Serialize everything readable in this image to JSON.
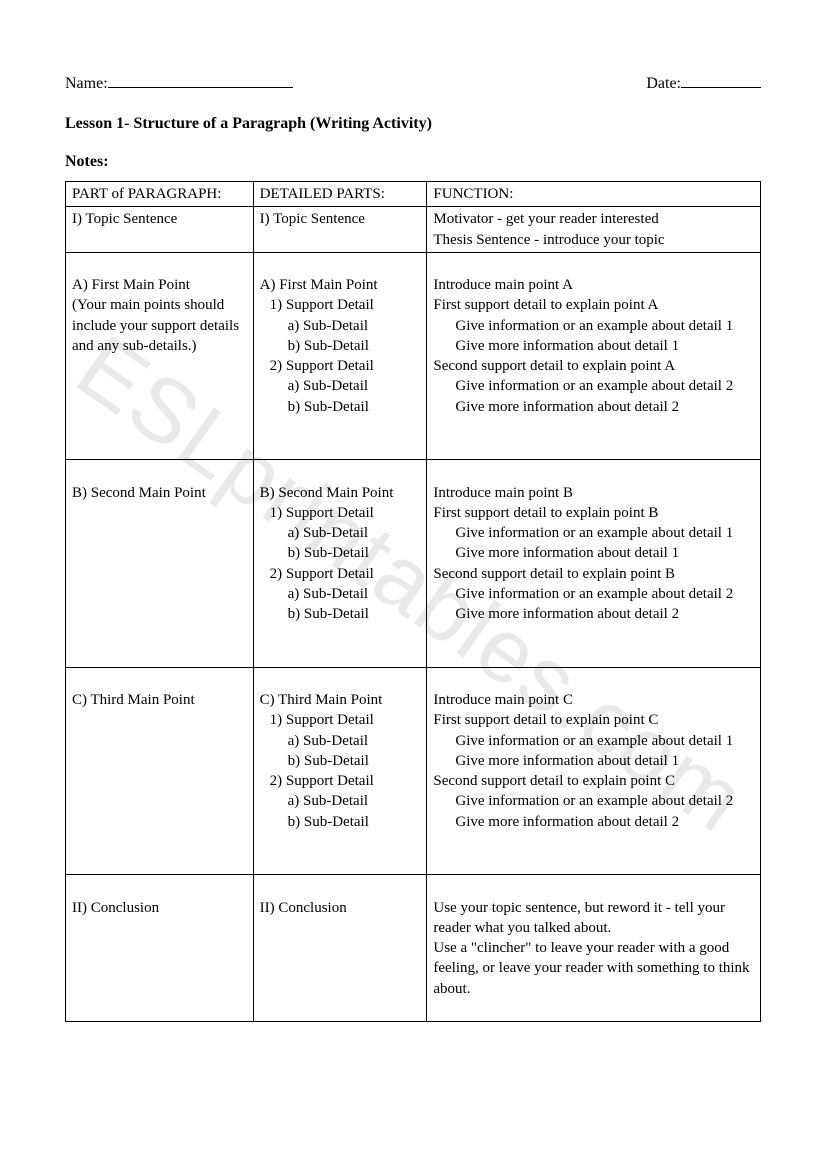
{
  "header": {
    "name_label": "Name:",
    "date_label": "Date:"
  },
  "title": "Lesson 1- Structure of a Paragraph  (Writing Activity)",
  "notes_label": "Notes:",
  "watermark": "ESLprintables.com",
  "table": {
    "headers": {
      "col1": "PART of PARAGRAPH:",
      "col2": "DETAILED PARTS:",
      "col3": "FUNCTION:"
    },
    "row_topic": {
      "c1": "I) Topic Sentence",
      "c2": "I) Topic Sentence",
      "c3a": "Motivator - get your reader interested",
      "c3b": "Thesis Sentence - introduce your topic"
    },
    "row_a": {
      "c1a": "A) First Main Point",
      "c1b": "(Your main points should include your support details and any sub-details.)",
      "c2_main": "A) First Main Point",
      "c2_1": "1) Support Detail",
      "c2_1a": "a) Sub-Detail",
      "c2_1b": "b) Sub-Detail",
      "c2_2": "2) Support Detail",
      "c2_2a": "a) Sub-Detail",
      "c2_2b": "b) Sub-Detail",
      "c3_1": "Introduce main point A",
      "c3_2": "First support detail to explain point A",
      "c3_3": "Give information or an example about detail 1",
      "c3_4": "Give more information about detail 1",
      "c3_5": "Second support detail to explain point A",
      "c3_6": "Give information or an example about detail 2",
      "c3_7": "Give more information about detail 2"
    },
    "row_b": {
      "c1": "B) Second Main Point",
      "c2_main": "B) Second Main Point",
      "c2_1": "1) Support Detail",
      "c2_1a": "a) Sub-Detail",
      "c2_1b": "b) Sub-Detail",
      "c2_2": "2) Support Detail",
      "c2_2a": "a) Sub-Detail",
      "c2_2b": "b) Sub-Detail",
      "c3_1": "Introduce main point B",
      "c3_2": "First support detail to explain point B",
      "c3_3": "Give information or an example about detail 1",
      "c3_4": "Give more information about detail 1",
      "c3_5": "Second support detail to explain point B",
      "c3_6": "Give information or an example about detail 2",
      "c3_7": "Give more information about detail 2"
    },
    "row_c": {
      "c1": "C) Third Main Point",
      "c2_main": "C) Third Main Point",
      "c2_1": "1) Support Detail",
      "c2_1a": "a) Sub-Detail",
      "c2_1b": "b) Sub-Detail",
      "c2_2": "2) Support Detail",
      "c2_2a": "a) Sub-Detail",
      "c2_2b": "b) Sub-Detail",
      "c3_1": "Introduce main point C",
      "c3_2": "First support detail to explain point C",
      "c3_3": "Give information or an example about detail 1",
      "c3_4": "Give more information about detail 1",
      "c3_5": "Second support detail to explain point C",
      "c3_6": "Give information or an example about detail 2",
      "c3_7": "Give more information about detail 2"
    },
    "row_conclusion": {
      "c1": "II) Conclusion",
      "c2": "II) Conclusion",
      "c3a": "Use your topic sentence, but reword it - tell your reader what you talked about.",
      "c3b": "Use a \"clincher\" to leave your reader with a good feeling, or leave your reader with something to think about."
    }
  }
}
